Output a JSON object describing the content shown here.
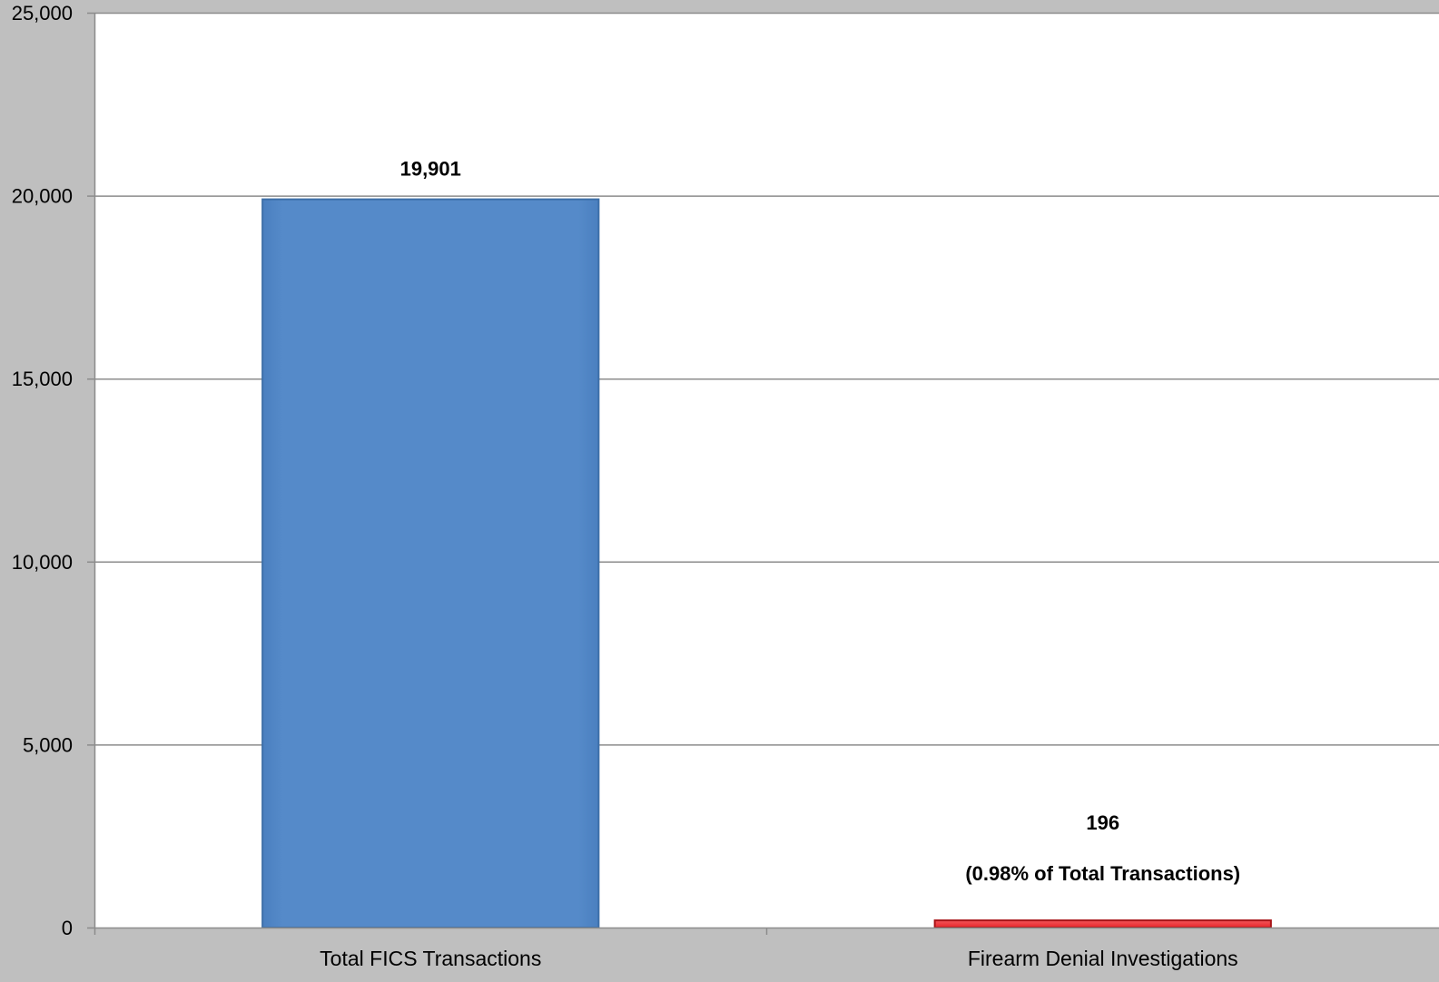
{
  "colors": {
    "background": "#bfbfbf",
    "plot_area": "#ffffff",
    "gridline": "#8c8c8c",
    "series_1": "#558ac9",
    "series_1_edge": "#3d6fa8",
    "series_2": "#e8262b",
    "series_2_edge": "#a81418"
  },
  "chart_data": {
    "type": "bar",
    "title": "",
    "xlabel": "",
    "ylabel": "",
    "categories": [
      "Total FICS Transactions",
      "Firearm Denial Investigations"
    ],
    "values": [
      19901,
      196
    ],
    "value_labels": [
      "19,901",
      "196"
    ],
    "annotations": [
      "",
      "(0.98% of Total Transactions)"
    ],
    "ylim": [
      0,
      25000
    ],
    "y_ticks": [
      0,
      5000,
      10000,
      15000,
      20000,
      25000
    ],
    "y_tick_labels": [
      "0",
      "5,000",
      "10,000",
      "15,000",
      "20,000",
      "25,000"
    ],
    "grid": true,
    "legend": "none"
  }
}
